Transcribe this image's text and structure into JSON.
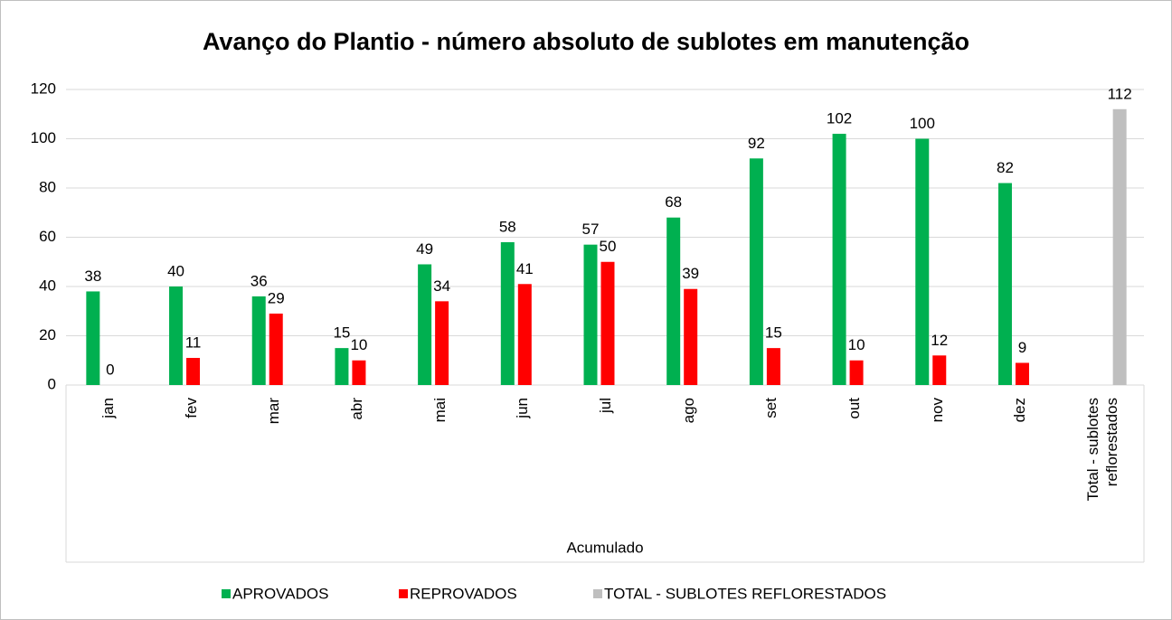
{
  "chart_data": {
    "type": "bar",
    "title": "Avanço do Plantio - número absoluto de sublotes em manutenção",
    "x_label": "Acumulado",
    "categories": [
      "jan",
      "fev",
      "mar",
      "abr",
      "mai",
      "jun",
      "jul",
      "ago",
      "set",
      "out",
      "nov",
      "dez",
      "Total - sublotes reflorestados"
    ],
    "series": [
      {
        "name": "APROVADOS",
        "color": "#00b050",
        "values": [
          38,
          40,
          36,
          15,
          49,
          58,
          57,
          68,
          92,
          102,
          100,
          82,
          null
        ]
      },
      {
        "name": "REPROVADOS",
        "color": "#ff0000",
        "values": [
          0,
          11,
          29,
          10,
          34,
          41,
          50,
          39,
          15,
          10,
          12,
          9,
          null
        ]
      },
      {
        "name": "TOTAL - SUBLOTES REFLORESTADOS",
        "color": "#bfbfbf",
        "values": [
          null,
          null,
          null,
          null,
          null,
          null,
          null,
          null,
          null,
          null,
          null,
          null,
          112
        ]
      }
    ],
    "ylim": [
      0,
      120
    ],
    "yticks": [
      0,
      20,
      40,
      60,
      80,
      100,
      120
    ],
    "grid": true,
    "legend": "bottom"
  }
}
